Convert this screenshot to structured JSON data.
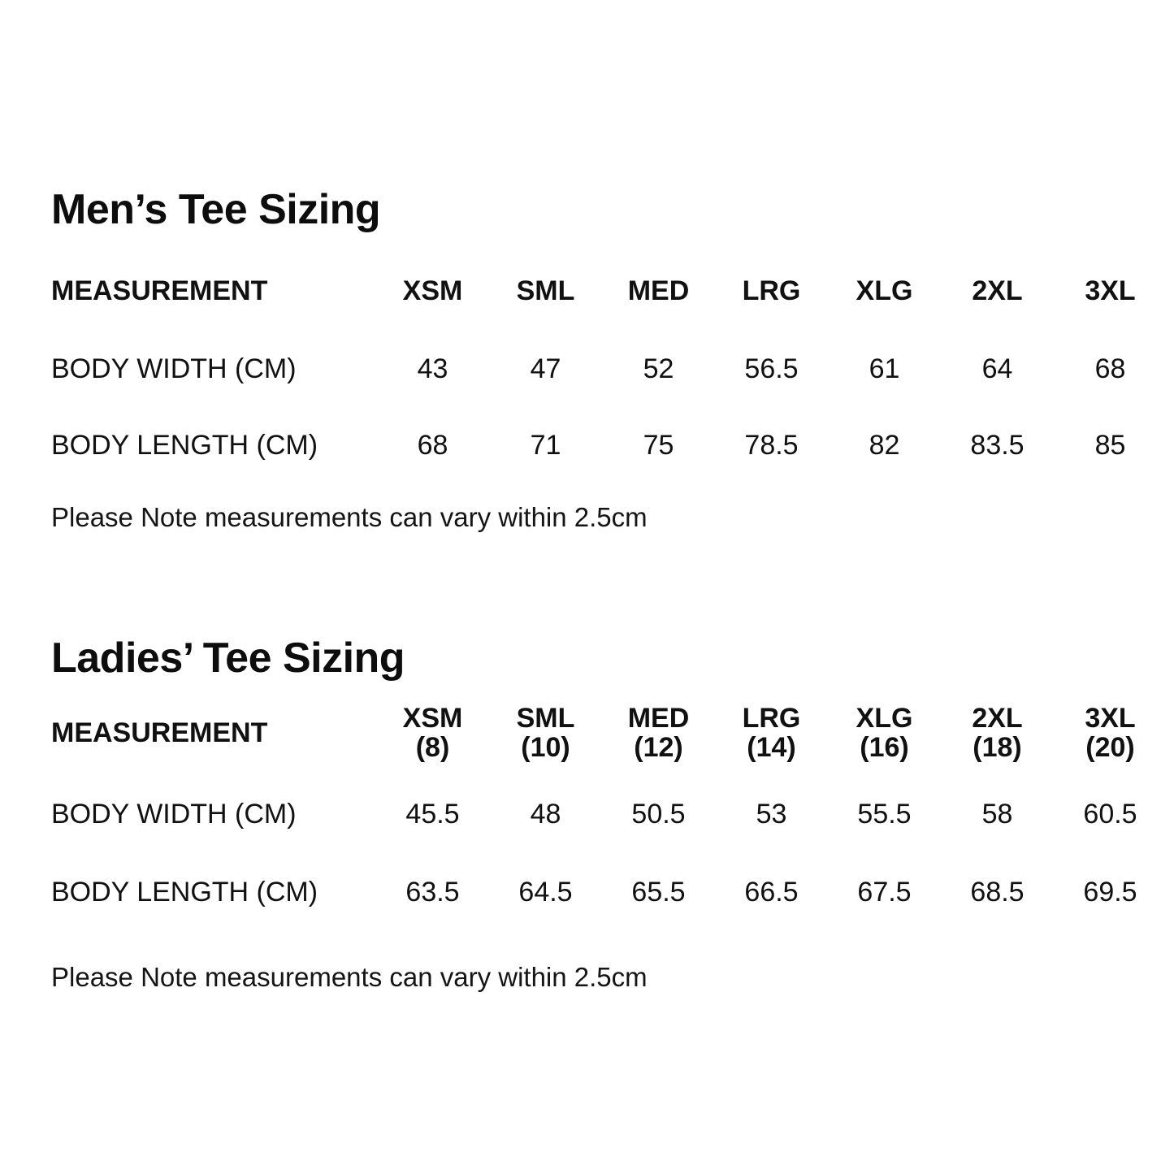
{
  "page": {
    "background": "#ffffff",
    "text_color": "#111111"
  },
  "sections": [
    {
      "title": "Men’s Tee Sizing",
      "columns": [
        "MEASUREMENT",
        "XSM",
        "SML",
        "MED",
        "LRG",
        "XLG",
        "2XL",
        "3XL"
      ],
      "rows": [
        {
          "label": "BODY WIDTH (CM)",
          "values": [
            "43",
            "47",
            "52",
            "56.5",
            "61",
            "64",
            "68"
          ]
        },
        {
          "label": "BODY LENGTH (CM)",
          "values": [
            "68",
            "71",
            "75",
            "78.5",
            "82",
            "83.5",
            "85"
          ]
        }
      ],
      "note": "Please Note measurements can vary within 2.5cm"
    },
    {
      "title": "Ladies’ Tee Sizing",
      "columns": [
        "MEASUREMENT",
        "XSM",
        "SML",
        "MED",
        "LRG",
        "XLG",
        "2XL",
        "3XL"
      ],
      "column_sublabels": [
        "",
        "(8)",
        "(10)",
        "(12)",
        "(14)",
        "(16)",
        "(18)",
        "(20)"
      ],
      "rows": [
        {
          "label": "BODY WIDTH (CM)",
          "values": [
            "45.5",
            "48",
            "50.5",
            "53",
            "55.5",
            "58",
            "60.5"
          ]
        },
        {
          "label": "BODY LENGTH (CM)",
          "values": [
            "63.5",
            "64.5",
            "65.5",
            "66.5",
            "67.5",
            "68.5",
            "69.5"
          ]
        }
      ],
      "note": "Please Note measurements can vary within 2.5cm"
    }
  ],
  "chart_data": [
    {
      "type": "table",
      "title": "Men's Tee Sizing",
      "columns": [
        "MEASUREMENT",
        "XSM",
        "SML",
        "MED",
        "LRG",
        "XLG",
        "2XL",
        "3XL"
      ],
      "rows": [
        [
          "BODY WIDTH (CM)",
          43,
          47,
          52,
          56.5,
          61,
          64,
          68
        ],
        [
          "BODY LENGTH (CM)",
          68,
          71,
          75,
          78.5,
          82,
          83.5,
          85
        ]
      ],
      "note": "Please Note measurements can vary within 2.5cm"
    },
    {
      "type": "table",
      "title": "Ladies' Tee Sizing",
      "columns": [
        "MEASUREMENT",
        "XSM (8)",
        "SML (10)",
        "MED (12)",
        "LRG (14)",
        "XLG (16)",
        "2XL (18)",
        "3XL (20)"
      ],
      "rows": [
        [
          "BODY WIDTH (CM)",
          45.5,
          48,
          50.5,
          53,
          55.5,
          58,
          60.5
        ],
        [
          "BODY LENGTH (CM)",
          63.5,
          64.5,
          65.5,
          66.5,
          67.5,
          68.5,
          69.5
        ]
      ],
      "note": "Please Note measurements can vary within 2.5cm"
    }
  ]
}
